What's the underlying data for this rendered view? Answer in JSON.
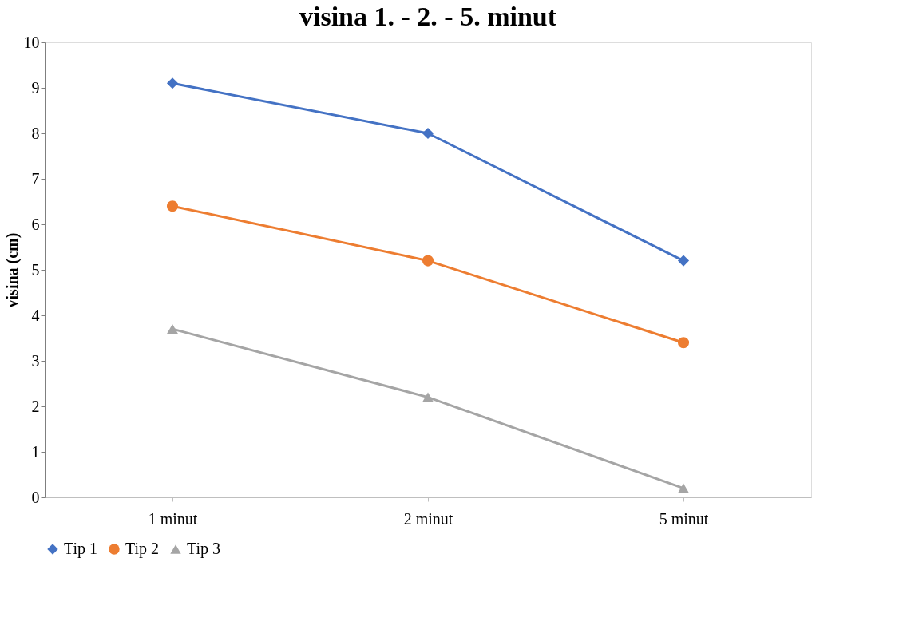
{
  "chart_data": {
    "type": "line",
    "title": "visina 1. - 2. - 5. minut",
    "ylabel": "visina (cm)",
    "categories": [
      "1 minut",
      "2 minut",
      "5 minut"
    ],
    "series": [
      {
        "name": "Tip 1",
        "color": "#4472c4",
        "marker": "diamond",
        "values": [
          9.1,
          8.0,
          5.2
        ]
      },
      {
        "name": "Tip 2",
        "color": "#ed7d31",
        "marker": "circle",
        "values": [
          6.4,
          5.2,
          3.4
        ]
      },
      {
        "name": "Tip 3",
        "color": "#a5a5a5",
        "marker": "triangle",
        "values": [
          3.7,
          2.2,
          0.2
        ]
      }
    ],
    "ylim": [
      0,
      10
    ],
    "yticks": [
      0,
      1,
      2,
      3,
      4,
      5,
      6,
      7,
      8,
      9,
      10
    ],
    "grid": false,
    "legend": "bottom",
    "line_style": "solid"
  }
}
